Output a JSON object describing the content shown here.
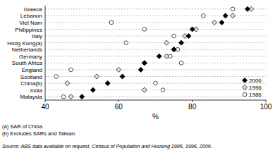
{
  "chart_data": {
    "type": "dot",
    "orientation": "horizontal",
    "categories": [
      "Greece",
      "Lebanon",
      "Viet Nam",
      "Philippines",
      "Italy",
      "Hong Kong(a)",
      "Netherlands",
      "Germany",
      "South Africa",
      "England",
      "Scotland",
      "China(b)",
      "India",
      "Malaysia"
    ],
    "series": [
      {
        "name": "2006",
        "color": "#000000",
        "marker": "diamond",
        "values": [
          95,
          89,
          88,
          80,
          79,
          77,
          75,
          71,
          67,
          66,
          61,
          57,
          53,
          50
        ]
      },
      {
        "name": "1996",
        "color": "#d9d9d9",
        "marker": "diamond",
        "values": [
          96,
          91,
          86,
          81,
          78,
          73,
          75,
          73,
          67,
          60,
          54,
          46,
          67,
          47
        ]
      },
      {
        "name": "1986",
        "color": "#ffffff",
        "marker": "circle",
        "values": [
          91,
          83,
          58,
          67,
          75,
          62,
          76,
          74,
          77,
          47,
          43,
          70,
          72,
          45
        ]
      }
    ],
    "xlim": [
      40,
      100
    ],
    "xticks": [
      40,
      60,
      80,
      100
    ],
    "x_label": "%",
    "grid": true,
    "legend": "lower right",
    "footnotes": [
      "(a) SAR of China.",
      "(b) Excludes SARs and Taiwan."
    ],
    "source": "Source: ABS data available on request, Census of Population and Housing 1986, 1996, 2006."
  }
}
